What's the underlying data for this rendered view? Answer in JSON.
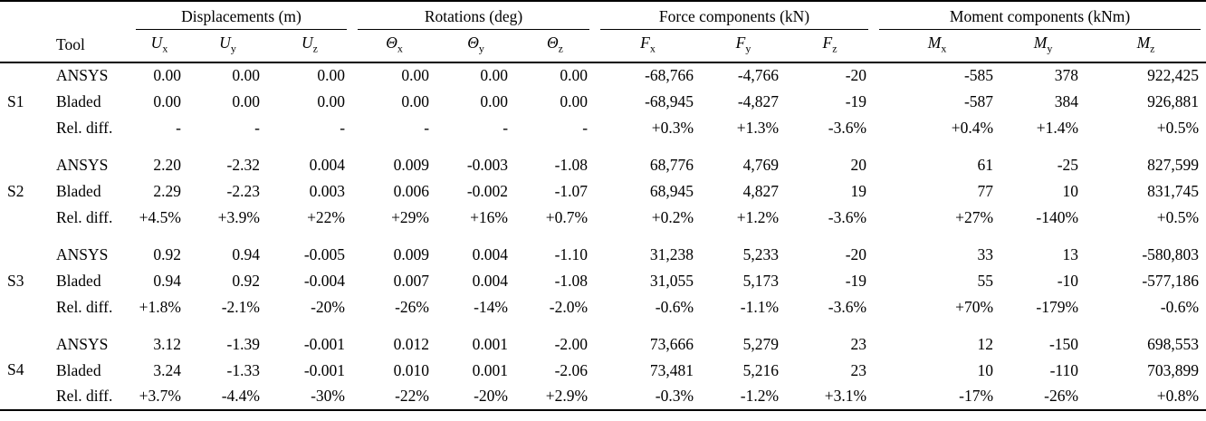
{
  "table": {
    "tool_header": "Tool",
    "groups": [
      {
        "label": "Displacements (m)",
        "cols": [
          {
            "base": "U",
            "sub": "x"
          },
          {
            "base": "U",
            "sub": "y"
          },
          {
            "base": "U",
            "sub": "z"
          }
        ]
      },
      {
        "label": "Rotations (deg)",
        "cols": [
          {
            "base": "Θ",
            "sub": "x"
          },
          {
            "base": "Θ",
            "sub": "y"
          },
          {
            "base": "Θ",
            "sub": "z"
          }
        ]
      },
      {
        "label": "Force components (kN)",
        "cols": [
          {
            "base": "F",
            "sub": "x"
          },
          {
            "base": "F",
            "sub": "y"
          },
          {
            "base": "F",
            "sub": "z"
          }
        ]
      },
      {
        "label": "Moment components (kNm)",
        "cols": [
          {
            "base": "M",
            "sub": "x"
          },
          {
            "base": "M",
            "sub": "y"
          },
          {
            "base": "M",
            "sub": "z"
          }
        ]
      }
    ],
    "row_groups": [
      {
        "label": "S1",
        "rows": [
          {
            "tool": "ANSYS",
            "values": [
              "0.00",
              "0.00",
              "0.00",
              "0.00",
              "0.00",
              "0.00",
              "-68,766",
              "-4,766",
              "-20",
              "-585",
              "378",
              "922,425"
            ]
          },
          {
            "tool": "Bladed",
            "values": [
              "0.00",
              "0.00",
              "0.00",
              "0.00",
              "0.00",
              "0.00",
              "-68,945",
              "-4,827",
              "-19",
              "-587",
              "384",
              "926,881"
            ]
          },
          {
            "tool": "Rel. diff.",
            "values": [
              "-",
              "-",
              "-",
              "-",
              "-",
              "-",
              "+0.3%",
              "+1.3%",
              "-3.6%",
              "+0.4%",
              "+1.4%",
              "+0.5%"
            ]
          }
        ]
      },
      {
        "label": "S2",
        "rows": [
          {
            "tool": "ANSYS",
            "values": [
              "2.20",
              "-2.32",
              "0.004",
              "0.009",
              "-0.003",
              "-1.08",
              "68,776",
              "4,769",
              "20",
              "61",
              "-25",
              "827,599"
            ]
          },
          {
            "tool": "Bladed",
            "values": [
              "2.29",
              "-2.23",
              "0.003",
              "0.006",
              "-0.002",
              "-1.07",
              "68,945",
              "4,827",
              "19",
              "77",
              "10",
              "831,745"
            ]
          },
          {
            "tool": "Rel. diff.",
            "values": [
              "+4.5%",
              "+3.9%",
              "+22%",
              "+29%",
              "+16%",
              "+0.7%",
              "+0.2%",
              "+1.2%",
              "-3.6%",
              "+27%",
              "-140%",
              "+0.5%"
            ]
          }
        ]
      },
      {
        "label": "S3",
        "rows": [
          {
            "tool": "ANSYS",
            "values": [
              "0.92",
              "0.94",
              "-0.005",
              "0.009",
              "0.004",
              "-1.10",
              "31,238",
              "5,233",
              "-20",
              "33",
              "13",
              "-580,803"
            ]
          },
          {
            "tool": "Bladed",
            "values": [
              "0.94",
              "0.92",
              "-0.004",
              "0.007",
              "0.004",
              "-1.08",
              "31,055",
              "5,173",
              "-19",
              "55",
              "-10",
              "-577,186"
            ]
          },
          {
            "tool": "Rel. diff.",
            "values": [
              "+1.8%",
              "-2.1%",
              "-20%",
              "-26%",
              "-14%",
              "-2.0%",
              "-0.6%",
              "-1.1%",
              "-3.6%",
              "+70%",
              "-179%",
              "-0.6%"
            ]
          }
        ]
      },
      {
        "label": "S4",
        "rows": [
          {
            "tool": "ANSYS",
            "values": [
              "3.12",
              "-1.39",
              "-0.001",
              "0.012",
              "0.001",
              "-2.00",
              "73,666",
              "5,279",
              "23",
              "12",
              "-150",
              "698,553"
            ]
          },
          {
            "tool": "Bladed",
            "values": [
              "3.24",
              "-1.33",
              "-0.001",
              "0.010",
              "0.001",
              "-2.06",
              "73,481",
              "5,216",
              "23",
              "10",
              "-110",
              "703,899"
            ]
          },
          {
            "tool": "Rel. diff.",
            "values": [
              "+3.7%",
              "-4.4%",
              "-30%",
              "-22%",
              "-20%",
              "+2.9%",
              "-0.3%",
              "-1.2%",
              "+3.1%",
              "-17%",
              "-26%",
              "+0.8%"
            ]
          }
        ]
      }
    ]
  }
}
